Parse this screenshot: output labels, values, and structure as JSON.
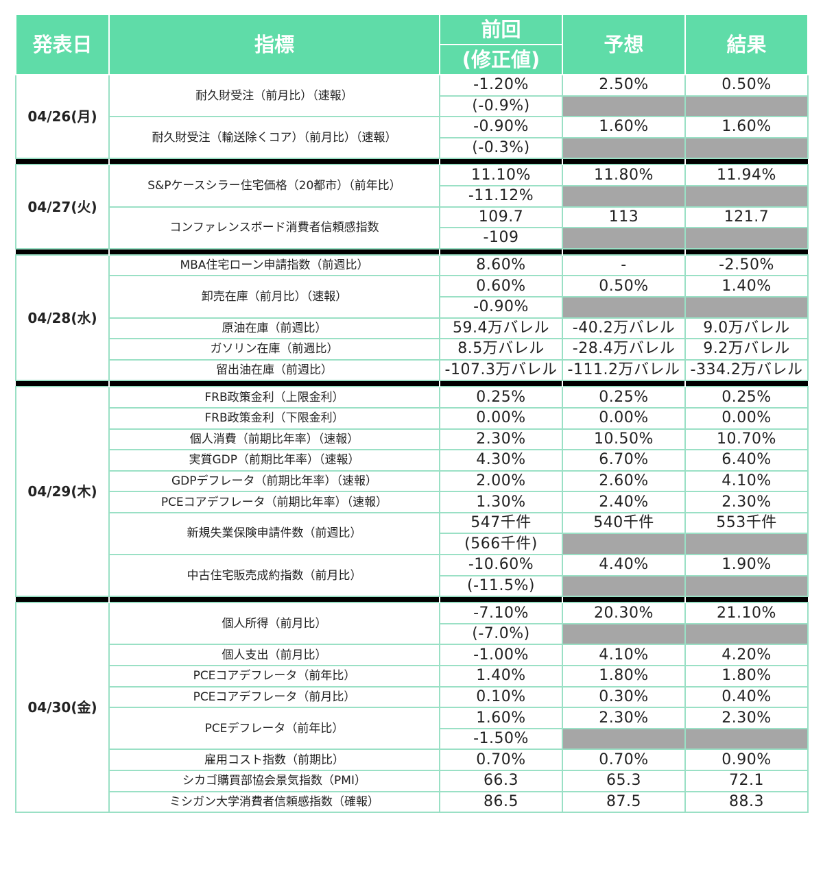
{
  "header": {
    "date": "発表日",
    "indicator": "指標",
    "prev_line1": "前回",
    "prev_line2": "(修正値)",
    "forecast": "予想",
    "result": "結果"
  },
  "groups": [
    {
      "date": "04/26(月)",
      "rows": [
        {
          "name": "耐久財受注（前月比）（速報）",
          "prev": "-1.20%",
          "forecast": "2.50%",
          "result": "0.50%",
          "revised": "(-0.9%)"
        },
        {
          "name": "耐久財受注（輸送除くコア）（前月比）（速報）",
          "prev": "-0.90%",
          "forecast": "1.60%",
          "result": "1.60%",
          "revised": "(-0.3%)"
        }
      ]
    },
    {
      "date": "04/27(火)",
      "rows": [
        {
          "name": "S&Pケースシラー住宅価格（20都市）（前年比）",
          "prev": "11.10%",
          "forecast": "11.80%",
          "result": "11.94%",
          "revised": "-11.12%"
        },
        {
          "name": "コンファレンスボード消費者信頼感指数",
          "prev": "109.7",
          "forecast": "113",
          "result": "121.7",
          "revised": "-109"
        }
      ]
    },
    {
      "date": "04/28(水)",
      "rows": [
        {
          "name": "MBA住宅ローン申請指数（前週比）",
          "prev": "8.60%",
          "forecast": "-",
          "result": "-2.50%"
        },
        {
          "name": "卸売在庫（前月比）（速報）",
          "prev": "0.60%",
          "forecast": "0.50%",
          "result": "1.40%",
          "revised": "-0.90%"
        },
        {
          "name": "原油在庫（前週比）",
          "prev": "59.4万バレル",
          "forecast": "-40.2万バレル",
          "result": "9.0万バレル"
        },
        {
          "name": "ガソリン在庫（前週比）",
          "prev": "8.5万バレル",
          "forecast": "-28.4万バレル",
          "result": "9.2万バレル"
        },
        {
          "name": "留出油在庫（前週比）",
          "prev": "-107.3万バレル",
          "forecast": "-111.2万バレル",
          "result": "-334.2万バレル"
        }
      ]
    },
    {
      "date": "04/29(木)",
      "rows": [
        {
          "name": "FRB政策金利（上限金利）",
          "prev": "0.25%",
          "forecast": "0.25%",
          "result": "0.25%"
        },
        {
          "name": "FRB政策金利（下限金利）",
          "prev": "0.00%",
          "forecast": "0.00%",
          "result": "0.00%"
        },
        {
          "name": "個人消費（前期比年率）（速報）",
          "prev": "2.30%",
          "forecast": "10.50%",
          "result": "10.70%"
        },
        {
          "name": "実質GDP（前期比年率）（速報）",
          "prev": "4.30%",
          "forecast": "6.70%",
          "result": "6.40%"
        },
        {
          "name": "GDPデフレータ（前期比年率）（速報）",
          "prev": "2.00%",
          "forecast": "2.60%",
          "result": "4.10%"
        },
        {
          "name": "PCEコアデフレータ（前期比年率）（速報）",
          "prev": "1.30%",
          "forecast": "2.40%",
          "result": "2.30%"
        },
        {
          "name": "新規失業保険申請件数（前週比）",
          "prev": "547千件",
          "forecast": "540千件",
          "result": "553千件",
          "revised": "(566千件)"
        },
        {
          "name": "中古住宅販売成約指数（前月比）",
          "prev": "-10.60%",
          "forecast": "4.40%",
          "result": "1.90%",
          "revised": "(-11.5%)"
        }
      ]
    },
    {
      "date": "04/30(金)",
      "rows": [
        {
          "name": "個人所得（前月比）",
          "prev": "-7.10%",
          "forecast": "20.30%",
          "result": "21.10%",
          "revised": "(-7.0%)"
        },
        {
          "name": "個人支出（前月比）",
          "prev": "-1.00%",
          "forecast": "4.10%",
          "result": "4.20%"
        },
        {
          "name": "PCEコアデフレータ（前年比）",
          "prev": "1.40%",
          "forecast": "1.80%",
          "result": "1.80%"
        },
        {
          "name": "PCEコアデフレータ（前月比）",
          "prev": "0.10%",
          "forecast": "0.30%",
          "result": "0.40%"
        },
        {
          "name": "PCEデフレータ（前年比）",
          "prev": "1.60%",
          "forecast": "2.30%",
          "result": "2.30%",
          "revised": "-1.50%"
        },
        {
          "name": "雇用コスト指数（前期比）",
          "prev": "0.70%",
          "forecast": "0.70%",
          "result": "0.90%"
        },
        {
          "name": "シカゴ購買部協会景気指数（PMI）",
          "prev": "66.3",
          "forecast": "65.3",
          "result": "72.1"
        },
        {
          "name": "ミシガン大学消費者信頼感指数（確報）",
          "prev": "86.5",
          "forecast": "87.5",
          "result": "88.3"
        }
      ]
    }
  ],
  "colors": {
    "header_bg": "#5fdca8",
    "grid": "#9ae0c5",
    "blank_cell": "#a6a6a6",
    "separator": "#000000"
  }
}
